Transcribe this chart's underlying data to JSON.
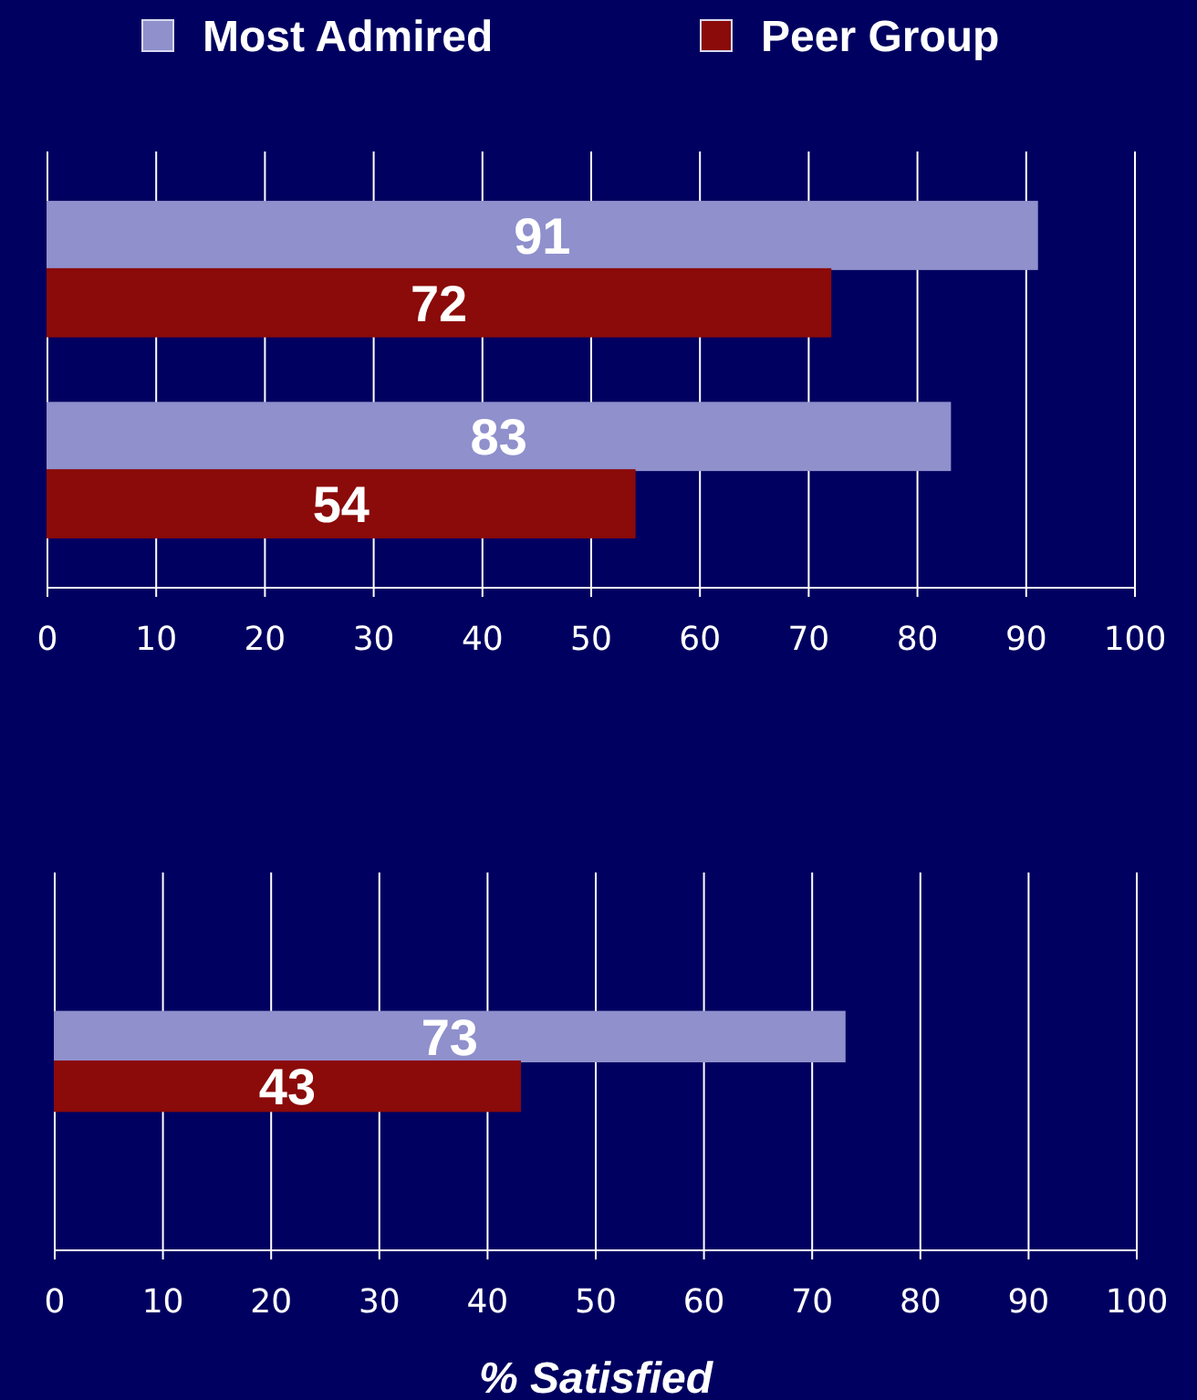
{
  "chart_data": [
    {
      "type": "bar",
      "orientation": "horizontal",
      "categories": [
        null,
        null
      ],
      "series": [
        {
          "name": "Most Admired",
          "color": "#8f90cc",
          "values": [
            91,
            83
          ]
        },
        {
          "name": "Peer Group",
          "color": "#8b0a0a",
          "values": [
            72,
            54
          ]
        }
      ],
      "xlim": [
        0,
        100
      ],
      "xticks": [
        0,
        10,
        20,
        30,
        40,
        50,
        60,
        70,
        80,
        90,
        100
      ],
      "grid": "x",
      "data_labels": true,
      "legend": "top"
    },
    {
      "type": "bar",
      "orientation": "horizontal",
      "categories": [
        null
      ],
      "series": [
        {
          "color": "#8f90cc",
          "values": [
            73
          ]
        },
        {
          "color": "#8b0a0a",
          "values": [
            43
          ]
        }
      ],
      "xlim": [
        0,
        100
      ],
      "xticks": [
        0,
        10,
        20,
        30,
        40,
        50,
        60,
        70,
        80,
        90,
        100
      ],
      "grid": "x",
      "data_labels": true,
      "xlabel": "% Satisfied"
    }
  ]
}
